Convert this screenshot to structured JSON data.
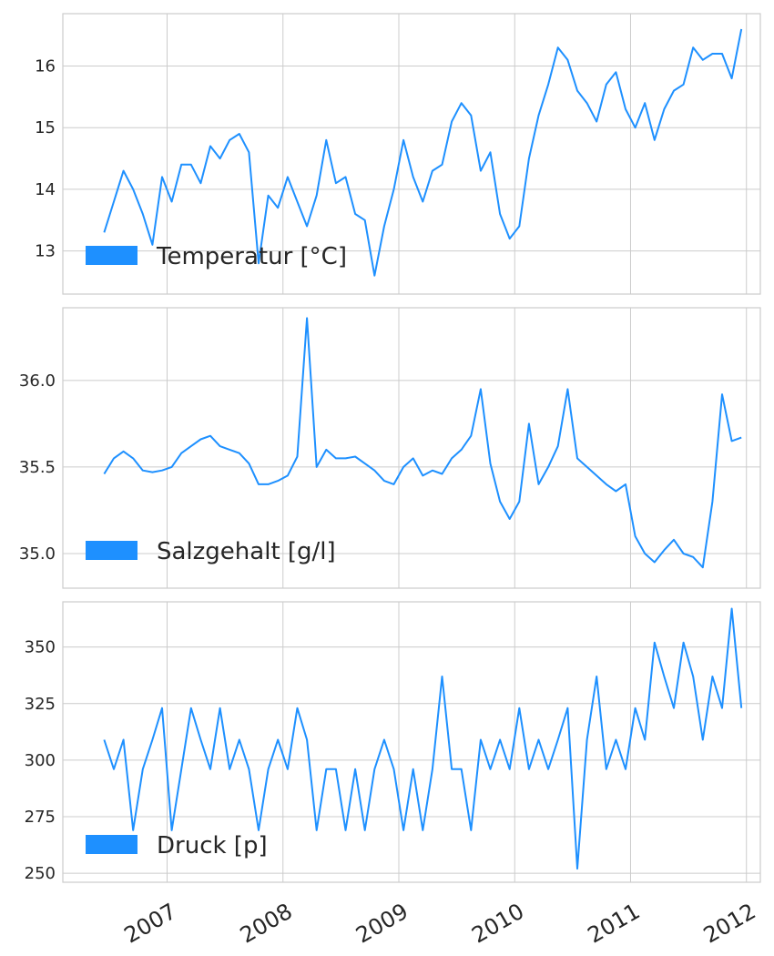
{
  "chart_data": [
    {
      "type": "line",
      "x_axis": "date",
      "xticks": [
        "2007",
        "2008",
        "2009",
        "2010",
        "2011",
        "2012"
      ],
      "x": [
        "2006-06",
        "2006-07",
        "2006-08",
        "2006-09",
        "2006-10",
        "2006-11",
        "2006-12",
        "2007-01",
        "2007-02",
        "2007-03",
        "2007-04",
        "2007-05",
        "2007-06",
        "2007-07",
        "2007-08",
        "2007-09",
        "2007-10",
        "2007-11",
        "2007-12",
        "2008-01",
        "2008-02",
        "2008-03",
        "2008-04",
        "2008-05",
        "2008-06",
        "2008-07",
        "2008-08",
        "2008-09",
        "2008-10",
        "2008-11",
        "2008-12",
        "2009-01",
        "2009-02",
        "2009-03",
        "2009-04",
        "2009-05",
        "2009-06",
        "2009-07",
        "2009-08",
        "2009-09",
        "2009-10",
        "2009-11",
        "2009-12",
        "2010-01",
        "2010-02",
        "2010-03",
        "2010-04",
        "2010-05",
        "2010-06",
        "2010-07",
        "2010-08",
        "2010-09",
        "2010-10",
        "2010-11",
        "2010-12",
        "2011-01",
        "2011-02",
        "2011-03",
        "2011-04",
        "2011-05",
        "2011-06",
        "2011-07",
        "2011-08",
        "2011-09",
        "2011-10",
        "2011-11",
        "2011-12"
      ],
      "series": [
        {
          "name": "Temperatur [°C]",
          "values": [
            13.3,
            13.8,
            14.3,
            14.0,
            13.6,
            13.1,
            14.2,
            13.8,
            14.4,
            14.4,
            14.1,
            14.7,
            14.5,
            14.8,
            14.9,
            14.6,
            12.8,
            13.9,
            13.7,
            14.2,
            13.8,
            13.4,
            13.9,
            14.8,
            14.1,
            14.2,
            13.6,
            13.5,
            12.6,
            13.4,
            14.0,
            14.8,
            14.2,
            13.8,
            14.3,
            14.4,
            15.1,
            15.4,
            15.2,
            14.3,
            14.6,
            13.6,
            13.2,
            13.4,
            14.5,
            15.2,
            15.7,
            16.3,
            16.1,
            15.6,
            15.4,
            15.1,
            15.7,
            15.9,
            15.3,
            15.0,
            15.4,
            14.8,
            15.3,
            15.6,
            15.7,
            16.3,
            16.1,
            16.2,
            16.2,
            15.8,
            16.6
          ]
        }
      ],
      "ylim": [
        12.3,
        16.85
      ],
      "yticks": [
        13,
        14,
        15,
        16
      ],
      "grid": true,
      "legend": "lower-left",
      "color": "#1e90ff"
    },
    {
      "type": "line",
      "x_axis": "date",
      "xticks": [
        "2007",
        "2008",
        "2009",
        "2010",
        "2011",
        "2012"
      ],
      "x": [
        "2006-06",
        "2006-07",
        "2006-08",
        "2006-09",
        "2006-10",
        "2006-11",
        "2006-12",
        "2007-01",
        "2007-02",
        "2007-03",
        "2007-04",
        "2007-05",
        "2007-06",
        "2007-07",
        "2007-08",
        "2007-09",
        "2007-10",
        "2007-11",
        "2007-12",
        "2008-01",
        "2008-02",
        "2008-03",
        "2008-04",
        "2008-05",
        "2008-06",
        "2008-07",
        "2008-08",
        "2008-09",
        "2008-10",
        "2008-11",
        "2008-12",
        "2009-01",
        "2009-02",
        "2009-03",
        "2009-04",
        "2009-05",
        "2009-06",
        "2009-07",
        "2009-08",
        "2009-09",
        "2009-10",
        "2009-11",
        "2009-12",
        "2010-01",
        "2010-02",
        "2010-03",
        "2010-04",
        "2010-05",
        "2010-06",
        "2010-07",
        "2010-08",
        "2010-09",
        "2010-10",
        "2010-11",
        "2010-12",
        "2011-01",
        "2011-02",
        "2011-03",
        "2011-04",
        "2011-05",
        "2011-06",
        "2011-07",
        "2011-08",
        "2011-09",
        "2011-10",
        "2011-11",
        "2011-12"
      ],
      "series": [
        {
          "name": "Salzgehalt [g/l]",
          "values": [
            35.46,
            35.55,
            35.59,
            35.55,
            35.48,
            35.47,
            35.48,
            35.5,
            35.58,
            35.62,
            35.66,
            35.68,
            35.62,
            35.6,
            35.58,
            35.52,
            35.4,
            35.4,
            35.42,
            35.45,
            35.56,
            36.36,
            35.5,
            35.6,
            35.55,
            35.55,
            35.56,
            35.52,
            35.48,
            35.42,
            35.4,
            35.5,
            35.55,
            35.45,
            35.48,
            35.46,
            35.55,
            35.6,
            35.68,
            35.95,
            35.52,
            35.3,
            35.2,
            35.3,
            35.75,
            35.4,
            35.5,
            35.62,
            35.95,
            35.55,
            35.5,
            35.45,
            35.4,
            35.36,
            35.4,
            35.1,
            35.0,
            34.95,
            35.02,
            35.08,
            35.0,
            34.98,
            34.92,
            35.3,
            35.92,
            35.65,
            35.67
          ]
        }
      ],
      "ylim": [
        34.8,
        36.42
      ],
      "yticks": [
        35.0,
        35.5,
        36.0
      ],
      "grid": true,
      "legend": "lower-left",
      "color": "#1e90ff"
    },
    {
      "type": "line",
      "x_axis": "date",
      "xticks": [
        "2007",
        "2008",
        "2009",
        "2010",
        "2011",
        "2012"
      ],
      "x": [
        "2006-06",
        "2006-07",
        "2006-08",
        "2006-09",
        "2006-10",
        "2006-11",
        "2006-12",
        "2007-01",
        "2007-02",
        "2007-03",
        "2007-04",
        "2007-05",
        "2007-06",
        "2007-07",
        "2007-08",
        "2007-09",
        "2007-10",
        "2007-11",
        "2007-12",
        "2008-01",
        "2008-02",
        "2008-03",
        "2008-04",
        "2008-05",
        "2008-06",
        "2008-07",
        "2008-08",
        "2008-09",
        "2008-10",
        "2008-11",
        "2008-12",
        "2009-01",
        "2009-02",
        "2009-03",
        "2009-04",
        "2009-05",
        "2009-06",
        "2009-07",
        "2009-08",
        "2009-09",
        "2009-10",
        "2009-11",
        "2009-12",
        "2010-01",
        "2010-02",
        "2010-03",
        "2010-04",
        "2010-05",
        "2010-06",
        "2010-07",
        "2010-08",
        "2010-09",
        "2010-10",
        "2010-11",
        "2010-12",
        "2011-01",
        "2011-02",
        "2011-03",
        "2011-04",
        "2011-05",
        "2011-06",
        "2011-07",
        "2011-08",
        "2011-09",
        "2011-10",
        "2011-11",
        "2011-12"
      ],
      "series": [
        {
          "name": "Druck [p]",
          "values": [
            309,
            296,
            309,
            269,
            296,
            309,
            323,
            269,
            296,
            323,
            309,
            296,
            323,
            296,
            309,
            296,
            269,
            296,
            309,
            296,
            323,
            309,
            269,
            296,
            296,
            269,
            296,
            269,
            296,
            309,
            296,
            269,
            296,
            269,
            296,
            337,
            296,
            296,
            269,
            309,
            296,
            309,
            296,
            323,
            296,
            309,
            296,
            309,
            323,
            252,
            309,
            337,
            296,
            309,
            296,
            323,
            309,
            352,
            337,
            323,
            352,
            337,
            309,
            337,
            323,
            367,
            323
          ]
        }
      ],
      "ylim": [
        246,
        370
      ],
      "yticks": [
        250,
        275,
        300,
        325,
        350
      ],
      "grid": true,
      "legend": "lower-left",
      "color": "#1e90ff"
    }
  ]
}
